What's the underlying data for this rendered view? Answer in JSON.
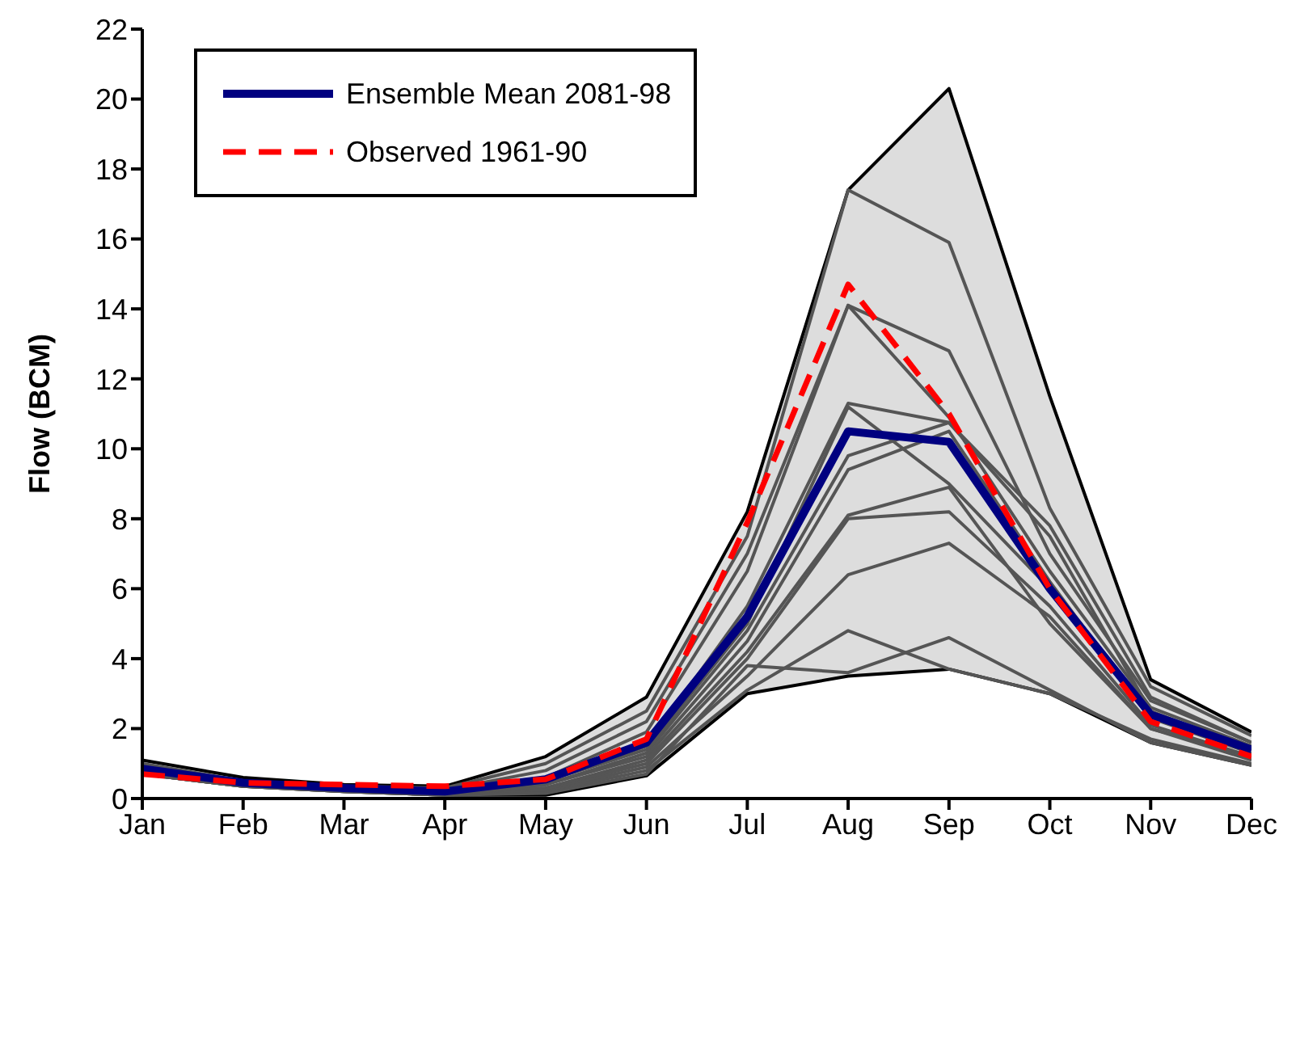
{
  "chart_data": {
    "type": "line",
    "ylabel": "Flow (BCM)",
    "categories": [
      "Jan",
      "Feb",
      "Mar",
      "Apr",
      "May",
      "Jun",
      "Jul",
      "Aug",
      "Sep",
      "Oct",
      "Nov",
      "Dec"
    ],
    "ylim": [
      0,
      22
    ],
    "yticks": [
      0,
      2,
      4,
      6,
      8,
      10,
      12,
      14,
      16,
      18,
      20,
      22
    ],
    "grid": false,
    "legend": "top left",
    "marker": "none",
    "series": [
      {
        "color": "#000000",
        "line_style": "solid",
        "values": [
          1.1,
          0.6,
          0.4,
          0.35,
          1.2,
          2.9,
          8.2,
          17.4,
          20.3,
          11.5,
          3.4,
          1.9
        ]
      },
      {
        "color": "#000000",
        "line_style": "solid",
        "values": [
          0.7,
          0.35,
          0.2,
          0.1,
          0.1,
          0.65,
          3.0,
          3.5,
          3.7,
          3.0,
          1.6,
          0.95
        ]
      },
      {
        "color": "#555555",
        "line_style": "solid",
        "values": [
          1.0,
          0.5,
          0.35,
          0.3,
          1.0,
          2.5,
          7.5,
          17.4,
          15.9,
          8.3,
          3.2,
          1.8
        ]
      },
      {
        "color": "#555555",
        "line_style": "solid",
        "values": [
          0.9,
          0.5,
          0.3,
          0.25,
          0.8,
          2.2,
          7.0,
          14.1,
          12.8,
          7.0,
          2.8,
          1.6
        ]
      },
      {
        "color": "#555555",
        "line_style": "solid",
        "values": [
          0.8,
          0.45,
          0.3,
          0.2,
          0.6,
          1.9,
          6.5,
          14.1,
          10.9,
          6.5,
          2.6,
          1.5
        ]
      },
      {
        "color": "#555555",
        "line_style": "solid",
        "values": [
          0.85,
          0.45,
          0.3,
          0.2,
          0.5,
          1.5,
          5.5,
          11.3,
          10.75,
          7.5,
          2.5,
          1.4
        ]
      },
      {
        "color": "#555555",
        "line_style": "solid",
        "values": [
          0.8,
          0.4,
          0.3,
          0.2,
          0.5,
          1.4,
          5.0,
          11.2,
          9.0,
          6.0,
          2.4,
          1.4
        ]
      },
      {
        "color": "#555555",
        "line_style": "solid",
        "values": [
          0.75,
          0.4,
          0.25,
          0.15,
          0.4,
          1.3,
          4.8,
          9.8,
          10.75,
          7.8,
          2.9,
          1.6
        ]
      },
      {
        "color": "#555555",
        "line_style": "solid",
        "values": [
          0.75,
          0.4,
          0.25,
          0.15,
          0.4,
          1.2,
          4.5,
          9.4,
          10.5,
          6.2,
          2.3,
          1.3
        ]
      },
      {
        "color": "#555555",
        "line_style": "solid",
        "values": [
          0.7,
          0.4,
          0.25,
          0.15,
          0.3,
          1.1,
          4.2,
          8.1,
          8.9,
          5.0,
          2.0,
          1.2
        ]
      },
      {
        "color": "#555555",
        "line_style": "solid",
        "values": [
          0.7,
          0.4,
          0.25,
          0.15,
          0.3,
          1.0,
          4.0,
          8.0,
          8.2,
          5.5,
          2.1,
          1.2
        ]
      },
      {
        "color": "#555555",
        "line_style": "solid",
        "values": [
          0.7,
          0.35,
          0.2,
          0.1,
          0.25,
          0.9,
          3.5,
          6.4,
          7.3,
          5.2,
          2.0,
          1.1
        ]
      },
      {
        "color": "#555555",
        "line_style": "solid",
        "values": [
          0.7,
          0.35,
          0.2,
          0.1,
          0.2,
          0.8,
          3.1,
          4.8,
          3.7,
          3.0,
          1.7,
          1.0
        ]
      },
      {
        "color": "#555555",
        "line_style": "solid",
        "values": [
          0.7,
          0.35,
          0.2,
          0.1,
          0.15,
          0.7,
          3.8,
          3.6,
          4.6,
          3.1,
          1.6,
          0.95
        ]
      },
      {
        "name": "Ensemble Mean 2081-98",
        "color": "#000080",
        "line_style": "solid",
        "values": [
          0.85,
          0.45,
          0.3,
          0.2,
          0.55,
          1.6,
          5.2,
          10.5,
          10.2,
          6.0,
          2.4,
          1.4
        ],
        "lower": [
          0.7,
          0.35,
          0.2,
          0.1,
          0.1,
          0.65,
          3.0,
          3.5,
          3.7,
          3.0,
          1.6,
          0.95
        ],
        "upper": [
          1.1,
          0.6,
          0.4,
          0.35,
          1.2,
          2.9,
          8.2,
          17.4,
          20.3,
          11.5,
          3.4,
          1.9
        ]
      },
      {
        "name": "Observed 1961-90",
        "color": "#ff0000",
        "line_style": "dashed",
        "values": [
          0.7,
          0.45,
          0.4,
          0.35,
          0.55,
          1.7,
          7.9,
          14.7,
          11.0,
          6.0,
          2.2,
          1.2
        ]
      }
    ]
  }
}
